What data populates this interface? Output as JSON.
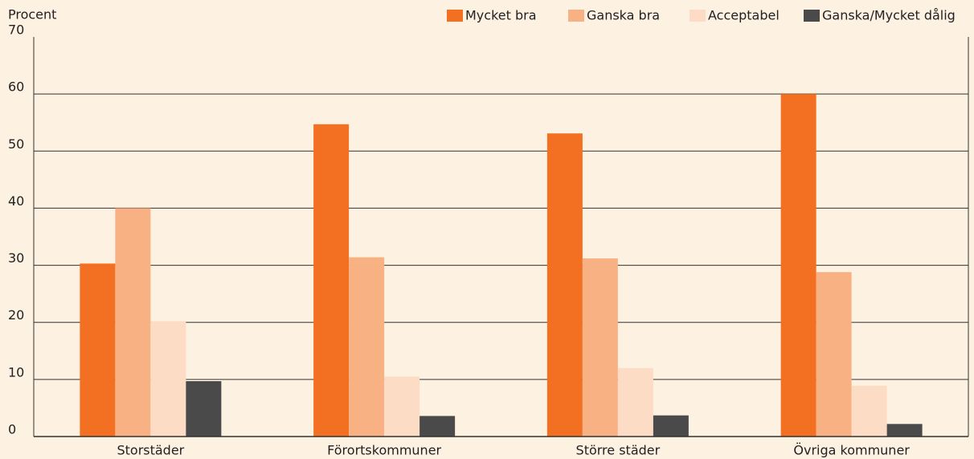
{
  "chart_data": {
    "type": "bar",
    "y_label": "Procent",
    "categories": [
      "Storstäder",
      "Förortskommuner",
      "Större städer",
      "Övriga kommuner"
    ],
    "series": [
      {
        "name": "Mycket bra",
        "color": "#f36f21",
        "values": [
          30.3,
          54.7,
          53.1,
          60
        ]
      },
      {
        "name": "Ganska bra",
        "color": "#f8b182",
        "values": [
          40,
          31.4,
          31.2,
          28.8
        ]
      },
      {
        "name": "Acceptabel",
        "color": "#fddcc6",
        "values": [
          20.2,
          10.5,
          12,
          8.9
        ]
      },
      {
        "name": "Ganska/Mycket dålig",
        "color": "#4a4a4a",
        "values": [
          9.7,
          3.6,
          3.7,
          2.2
        ]
      }
    ],
    "ylim": [
      0,
      70
    ],
    "yticks": [
      0,
      10,
      20,
      30,
      40,
      50,
      60,
      70
    ],
    "grid": true,
    "legend": "top-right"
  }
}
